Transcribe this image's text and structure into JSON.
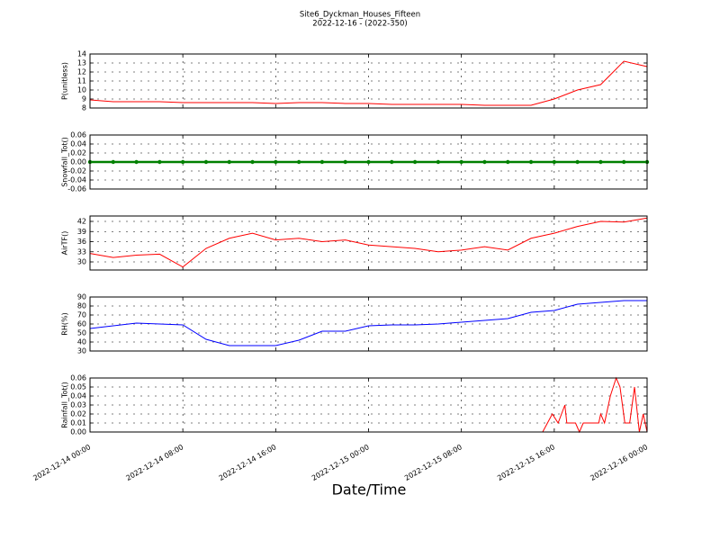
{
  "title": "Site6_Dyckman_Houses_Fifteen",
  "subtitle": "2022-12-16 - (2022-350)",
  "chart_data": [
    {
      "type": "line",
      "ylabel": "P(unitless)",
      "xlim": [
        "2022-12-14 00:00",
        "2022-12-16 00:00"
      ],
      "ylim": [
        8,
        14
      ],
      "yticks": [
        8,
        9,
        10,
        11,
        12,
        13,
        14
      ],
      "grid": true,
      "x": [
        "2022-12-14 00:00",
        "2022-12-14 02:00",
        "2022-12-14 04:00",
        "2022-12-14 06:00",
        "2022-12-14 08:00",
        "2022-12-14 10:00",
        "2022-12-14 12:00",
        "2022-12-14 14:00",
        "2022-12-14 16:00",
        "2022-12-14 18:00",
        "2022-12-14 20:00",
        "2022-12-14 22:00",
        "2022-12-15 00:00",
        "2022-12-15 02:00",
        "2022-12-15 04:00",
        "2022-12-15 06:00",
        "2022-12-15 08:00",
        "2022-12-15 10:00",
        "2022-12-15 12:00",
        "2022-12-15 14:00",
        "2022-12-15 16:00",
        "2022-12-15 18:00",
        "2022-12-15 20:00",
        "2022-12-15 22:00",
        "2022-12-16 00:00"
      ],
      "series": [
        {
          "color": "#ff0000",
          "values": [
            8.9,
            8.7,
            8.7,
            8.7,
            8.6,
            8.6,
            8.6,
            8.6,
            8.5,
            8.6,
            8.6,
            8.5,
            8.5,
            8.4,
            8.4,
            8.4,
            8.4,
            8.3,
            8.3,
            8.3,
            9.0,
            10.0,
            10.6,
            13.2,
            12.6
          ]
        }
      ]
    },
    {
      "type": "line",
      "ylabel": "Snowfall_Tot()",
      "xlim": [
        "2022-12-14 00:00",
        "2022-12-16 00:00"
      ],
      "ylim": [
        -0.06,
        0.06
      ],
      "yticks": [
        {
          "value": -0.06,
          "label": "-0.06"
        },
        {
          "value": -0.04,
          "label": "-0.04"
        },
        {
          "value": -0.02,
          "label": "-0.02"
        },
        {
          "value": 0,
          "label": "0.00"
        },
        {
          "value": 0.02,
          "label": "0.02"
        },
        {
          "value": 0.04,
          "label": "0.04"
        },
        {
          "value": 0.06,
          "label": "0.06"
        }
      ],
      "grid": true,
      "marker": "circle",
      "x": [
        "2022-12-14 00:00",
        "2022-12-14 02:00",
        "2022-12-14 04:00",
        "2022-12-14 06:00",
        "2022-12-14 08:00",
        "2022-12-14 10:00",
        "2022-12-14 12:00",
        "2022-12-14 14:00",
        "2022-12-14 16:00",
        "2022-12-14 18:00",
        "2022-12-14 20:00",
        "2022-12-14 22:00",
        "2022-12-15 00:00",
        "2022-12-15 02:00",
        "2022-12-15 04:00",
        "2022-12-15 06:00",
        "2022-12-15 08:00",
        "2022-12-15 10:00",
        "2022-12-15 12:00",
        "2022-12-15 14:00",
        "2022-12-15 16:00",
        "2022-12-15 18:00",
        "2022-12-15 20:00",
        "2022-12-15 22:00",
        "2022-12-16 00:00"
      ],
      "series": [
        {
          "color": "#008000",
          "values": [
            0,
            0,
            0,
            0,
            0,
            0,
            0,
            0,
            0,
            0,
            0,
            0,
            0,
            0,
            0,
            0,
            0,
            0,
            0,
            0,
            0,
            0,
            0,
            0,
            0
          ]
        }
      ]
    },
    {
      "type": "line",
      "ylabel": "AirTF()",
      "xlim": [
        "2022-12-14 00:00",
        "2022-12-16 00:00"
      ],
      "ylim": [
        27.6,
        43.6
      ],
      "yticks": [
        30,
        33,
        36,
        39,
        42
      ],
      "grid": true,
      "x": [
        "2022-12-14 00:00",
        "2022-12-14 02:00",
        "2022-12-14 04:00",
        "2022-12-14 06:00",
        "2022-12-14 08:00",
        "2022-12-14 10:00",
        "2022-12-14 12:00",
        "2022-12-14 14:00",
        "2022-12-14 16:00",
        "2022-12-14 18:00",
        "2022-12-14 20:00",
        "2022-12-14 22:00",
        "2022-12-15 00:00",
        "2022-12-15 02:00",
        "2022-12-15 04:00",
        "2022-12-15 06:00",
        "2022-12-15 08:00",
        "2022-12-15 10:00",
        "2022-12-15 12:00",
        "2022-12-15 14:00",
        "2022-12-15 16:00",
        "2022-12-15 18:00",
        "2022-12-15 20:00",
        "2022-12-15 22:00",
        "2022-12-16 00:00"
      ],
      "series": [
        {
          "color": "#ff0000",
          "values": [
            32.5,
            31.3,
            32.0,
            32.3,
            28.5,
            34,
            37,
            38.5,
            36.5,
            37,
            36,
            36.5,
            35,
            34.5,
            34,
            33,
            33.5,
            34.5,
            33.5,
            37,
            38.5,
            40.5,
            42,
            41.8,
            43
          ]
        }
      ]
    },
    {
      "type": "line",
      "ylabel": "RH(%)",
      "xlim": [
        "2022-12-14 00:00",
        "2022-12-16 00:00"
      ],
      "ylim": [
        30,
        90
      ],
      "yticks": [
        30,
        40,
        50,
        60,
        70,
        80,
        90
      ],
      "grid": true,
      "x": [
        "2022-12-14 00:00",
        "2022-12-14 02:00",
        "2022-12-14 04:00",
        "2022-12-14 06:00",
        "2022-12-14 08:00",
        "2022-12-14 10:00",
        "2022-12-14 12:00",
        "2022-12-14 14:00",
        "2022-12-14 16:00",
        "2022-12-14 18:00",
        "2022-12-14 20:00",
        "2022-12-14 22:00",
        "2022-12-15 00:00",
        "2022-12-15 02:00",
        "2022-12-15 04:00",
        "2022-12-15 06:00",
        "2022-12-15 08:00",
        "2022-12-15 10:00",
        "2022-12-15 12:00",
        "2022-12-15 14:00",
        "2022-12-15 16:00",
        "2022-12-15 18:00",
        "2022-12-15 20:00",
        "2022-12-15 22:00",
        "2022-12-16 00:00"
      ],
      "series": [
        {
          "color": "#0000ff",
          "values": [
            55,
            58,
            61,
            60,
            59,
            43,
            36,
            36,
            36,
            42,
            52,
            52,
            58,
            59,
            59,
            60,
            62,
            64,
            66,
            73,
            75,
            82,
            84,
            86,
            86
          ]
        }
      ]
    },
    {
      "type": "line",
      "ylabel": "Rainfall_Tot()",
      "xlabel": "Date/Time",
      "xlim": [
        "2022-12-14 00:00",
        "2022-12-16 00:00"
      ],
      "ylim": [
        0,
        0.06
      ],
      "yticks": [
        {
          "value": 0,
          "label": "0.00"
        },
        {
          "value": 0.01,
          "label": "0.01"
        },
        {
          "value": 0.02,
          "label": "0.02"
        },
        {
          "value": 0.03,
          "label": "0.03"
        },
        {
          "value": 0.04,
          "label": "0.04"
        },
        {
          "value": 0.05,
          "label": "0.05"
        },
        {
          "value": 0.06,
          "label": "0.06"
        }
      ],
      "grid": true,
      "xticks": [
        "2022-12-14 00:00",
        "2022-12-14 08:00",
        "2022-12-14 16:00",
        "2022-12-15 00:00",
        "2022-12-15 08:00",
        "2022-12-15 16:00",
        "2022-12-16 00:00"
      ],
      "x": [
        "2022-12-14 00:00",
        "2022-12-15 15:00",
        "2022-12-15 15:50",
        "2022-12-15 16:20",
        "2022-12-15 16:55",
        "2022-12-15 17:05",
        "2022-12-15 17:50",
        "2022-12-15 18:10",
        "2022-12-15 18:30",
        "2022-12-15 19:50",
        "2022-12-15 20:00",
        "2022-12-15 20:20",
        "2022-12-15 20:50",
        "2022-12-15 21:20",
        "2022-12-15 21:40",
        "2022-12-15 22:05",
        "2022-12-15 22:30",
        "2022-12-15 22:55",
        "2022-12-15 23:20",
        "2022-12-15 23:40",
        "2022-12-16 00:00"
      ],
      "series": [
        {
          "color": "#ff0000",
          "values": [
            0,
            0,
            0.02,
            0.01,
            0.03,
            0.01,
            0.01,
            0,
            0.01,
            0.01,
            0.02,
            0.01,
            0.04,
            0.06,
            0.05,
            0.01,
            0.01,
            0.05,
            0,
            0.02,
            0
          ]
        }
      ]
    }
  ]
}
